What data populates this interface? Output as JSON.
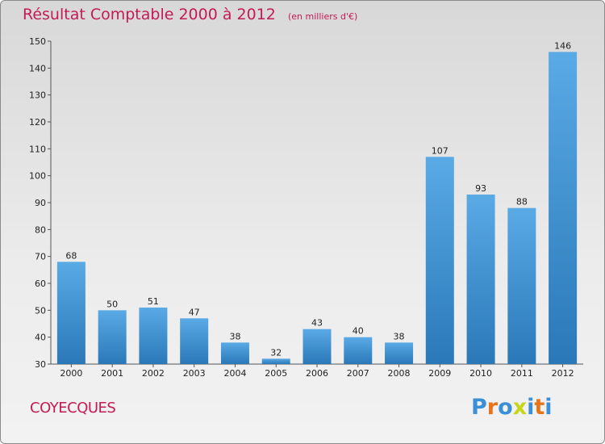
{
  "header": {
    "title": "Résultat Comptable 2000 à 2012",
    "subtitle": "(en milliers d'€)"
  },
  "footer": {
    "commune": "COYECQUES",
    "logo_text": "Proxiti",
    "logo_colors": [
      "#3a8fd6",
      "#e8741a",
      "#3a8fd6",
      "#c8d61a",
      "#3a8fd6",
      "#e8741a",
      "#3a8fd6"
    ]
  },
  "chart_data": {
    "type": "bar",
    "categories": [
      "2000",
      "2001",
      "2002",
      "2003",
      "2004",
      "2005",
      "2006",
      "2007",
      "2008",
      "2009",
      "2010",
      "2011",
      "2012"
    ],
    "values": [
      68,
      50,
      51,
      47,
      38,
      32,
      43,
      40,
      38,
      107,
      93,
      88,
      146
    ],
    "ylim": [
      30,
      150
    ],
    "yticks": [
      30,
      40,
      50,
      60,
      70,
      80,
      90,
      100,
      110,
      120,
      130,
      140,
      150
    ],
    "grid": false,
    "bar_color_top": "#5aaae6",
    "bar_color_bottom": "#2a78b8"
  }
}
